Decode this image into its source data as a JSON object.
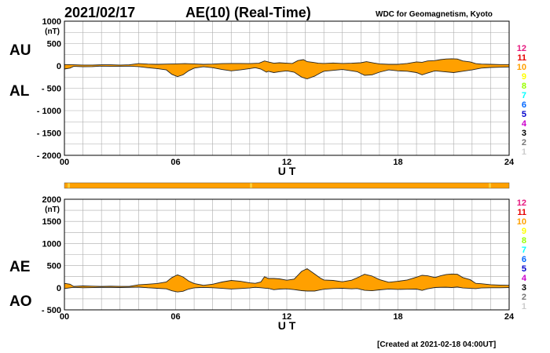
{
  "header": {
    "date": "2021/02/17",
    "title": "AE(10) (Real-Time)",
    "source": "WDC for Geomagnetism, Kyoto"
  },
  "footer": {
    "created": "[Created at 2021-02-18 04:00UT]"
  },
  "colors": {
    "fill": "#ffa000",
    "outline": "#222222",
    "grid": "#aaaaaa",
    "status_bar": "#ffa000",
    "status_bar_light": "#ffcc33"
  },
  "legend": {
    "items": [
      {
        "label": "12",
        "color": "#e6197f"
      },
      {
        "label": "11",
        "color": "#e60000"
      },
      {
        "label": "10",
        "color": "#ffa000"
      },
      {
        "label": "9",
        "color": "#ffff00"
      },
      {
        "label": "8",
        "color": "#99ff00"
      },
      {
        "label": "7",
        "color": "#00ffff"
      },
      {
        "label": "6",
        "color": "#0066ff"
      },
      {
        "label": "5",
        "color": "#0000cc"
      },
      {
        "label": "4",
        "color": "#cc00cc"
      },
      {
        "label": "3",
        "color": "#000000"
      },
      {
        "label": "2",
        "color": "#777777"
      },
      {
        "label": "1",
        "color": "#cccccc"
      }
    ]
  },
  "chart_data": [
    {
      "type": "area",
      "series": [
        {
          "name": "AU"
        },
        {
          "name": "AL"
        }
      ],
      "series_labels": [
        "AU",
        "AL"
      ],
      "yunit": "(nT)",
      "ylim": [
        -2000,
        1000
      ],
      "yticks": [
        "1000",
        "500",
        "0",
        "- 500",
        "- 1000",
        "- 1500",
        "- 2000"
      ],
      "ytick_values": [
        1000,
        500,
        0,
        -500,
        -1000,
        -1500,
        -2000
      ],
      "xlabel": "U T",
      "xlim": [
        0,
        24
      ],
      "xticks": [
        "00",
        "06",
        "12",
        "18",
        "24"
      ],
      "xtick_values": [
        0,
        6,
        12,
        18,
        24
      ],
      "grid": true,
      "upper": [
        [
          0,
          30
        ],
        [
          0.5,
          25
        ],
        [
          1,
          20
        ],
        [
          1.5,
          20
        ],
        [
          2,
          25
        ],
        [
          2.5,
          25
        ],
        [
          3,
          20
        ],
        [
          3.5,
          25
        ],
        [
          4,
          50
        ],
        [
          4.5,
          40
        ],
        [
          5,
          35
        ],
        [
          5.5,
          40
        ],
        [
          6,
          45
        ],
        [
          6.5,
          50
        ],
        [
          7,
          45
        ],
        [
          7.5,
          35
        ],
        [
          8,
          40
        ],
        [
          8.5,
          50
        ],
        [
          9,
          55
        ],
        [
          9.5,
          55
        ],
        [
          10,
          50
        ],
        [
          10.5,
          60
        ],
        [
          10.8,
          110
        ],
        [
          11,
          90
        ],
        [
          11.3,
          60
        ],
        [
          11.6,
          70
        ],
        [
          12,
          60
        ],
        [
          12.3,
          55
        ],
        [
          12.6,
          120
        ],
        [
          12.9,
          140
        ],
        [
          13.1,
          95
        ],
        [
          13.4,
          80
        ],
        [
          13.7,
          60
        ],
        [
          14,
          55
        ],
        [
          14.5,
          65
        ],
        [
          15,
          55
        ],
        [
          15.5,
          60
        ],
        [
          16,
          70
        ],
        [
          16.3,
          95
        ],
        [
          16.7,
          65
        ],
        [
          17,
          45
        ],
        [
          17.5,
          35
        ],
        [
          18,
          35
        ],
        [
          18.5,
          55
        ],
        [
          19,
          90
        ],
        [
          19.3,
          80
        ],
        [
          19.6,
          110
        ],
        [
          20,
          120
        ],
        [
          20.3,
          140
        ],
        [
          20.6,
          155
        ],
        [
          20.9,
          160
        ],
        [
          21.2,
          155
        ],
        [
          21.5,
          110
        ],
        [
          21.9,
          90
        ],
        [
          22.2,
          50
        ],
        [
          22.5,
          40
        ],
        [
          23,
          35
        ],
        [
          23.5,
          30
        ],
        [
          24,
          30
        ]
      ],
      "lower": [
        [
          0,
          -70
        ],
        [
          0.3,
          -50
        ],
        [
          0.5,
          -10
        ],
        [
          1,
          -20
        ],
        [
          1.5,
          -15
        ],
        [
          2,
          -5
        ],
        [
          2.5,
          -10
        ],
        [
          3,
          -10
        ],
        [
          3.5,
          -5
        ],
        [
          4,
          -15
        ],
        [
          4.5,
          -40
        ],
        [
          5,
          -60
        ],
        [
          5.5,
          -90
        ],
        [
          5.8,
          -190
        ],
        [
          6.1,
          -240
        ],
        [
          6.4,
          -200
        ],
        [
          6.7,
          -110
        ],
        [
          7,
          -50
        ],
        [
          7.5,
          -20
        ],
        [
          8,
          -40
        ],
        [
          8.5,
          -80
        ],
        [
          9,
          -110
        ],
        [
          9.5,
          -90
        ],
        [
          10,
          -60
        ],
        [
          10.3,
          -40
        ],
        [
          10.6,
          -70
        ],
        [
          10.9,
          -140
        ],
        [
          11,
          -120
        ],
        [
          11.3,
          -150
        ],
        [
          11.6,
          -130
        ],
        [
          12,
          -110
        ],
        [
          12.4,
          -140
        ],
        [
          12.8,
          -250
        ],
        [
          13.1,
          -290
        ],
        [
          13.5,
          -230
        ],
        [
          13.8,
          -160
        ],
        [
          14,
          -120
        ],
        [
          14.5,
          -100
        ],
        [
          15,
          -80
        ],
        [
          15.5,
          -110
        ],
        [
          15.8,
          -130
        ],
        [
          16.2,
          -210
        ],
        [
          16.6,
          -200
        ],
        [
          17,
          -140
        ],
        [
          17.5,
          -90
        ],
        [
          18,
          -110
        ],
        [
          18.5,
          -120
        ],
        [
          19,
          -150
        ],
        [
          19.3,
          -200
        ],
        [
          19.6,
          -160
        ],
        [
          20,
          -110
        ],
        [
          20.5,
          -130
        ],
        [
          21,
          -150
        ],
        [
          21.5,
          -120
        ],
        [
          22,
          -90
        ],
        [
          22.5,
          -50
        ],
        [
          23,
          -35
        ],
        [
          23.5,
          -30
        ],
        [
          24,
          -25
        ]
      ]
    },
    {
      "type": "area",
      "series": [
        {
          "name": "AE"
        },
        {
          "name": "AO"
        }
      ],
      "series_labels": [
        "AE",
        "AO"
      ],
      "yunit": "(nT)",
      "ylim": [
        -500,
        2000
      ],
      "yticks": [
        "2000",
        "1500",
        "1000",
        "500",
        "0",
        "- 500"
      ],
      "ytick_values": [
        2000,
        1500,
        1000,
        500,
        0,
        -500
      ],
      "xlabel": "U T",
      "xlim": [
        0,
        24
      ],
      "xticks": [
        "00",
        "06",
        "12",
        "18",
        "24"
      ],
      "xtick_values": [
        0,
        6,
        12,
        18,
        24
      ],
      "grid": true,
      "upper": [
        [
          0,
          100
        ],
        [
          0.3,
          80
        ],
        [
          0.5,
          30
        ],
        [
          1,
          40
        ],
        [
          1.5,
          35
        ],
        [
          2,
          30
        ],
        [
          2.5,
          35
        ],
        [
          3,
          30
        ],
        [
          3.5,
          30
        ],
        [
          4,
          65
        ],
        [
          4.5,
          80
        ],
        [
          5,
          95
        ],
        [
          5.5,
          130
        ],
        [
          5.8,
          230
        ],
        [
          6.1,
          290
        ],
        [
          6.4,
          245
        ],
        [
          6.7,
          155
        ],
        [
          7,
          95
        ],
        [
          7.5,
          55
        ],
        [
          8,
          80
        ],
        [
          8.5,
          130
        ],
        [
          9,
          165
        ],
        [
          9.5,
          145
        ],
        [
          10,
          110
        ],
        [
          10.3,
          100
        ],
        [
          10.6,
          130
        ],
        [
          10.8,
          250
        ],
        [
          11,
          210
        ],
        [
          11.3,
          210
        ],
        [
          11.6,
          200
        ],
        [
          12,
          170
        ],
        [
          12.4,
          195
        ],
        [
          12.8,
          370
        ],
        [
          13.1,
          430
        ],
        [
          13.5,
          310
        ],
        [
          13.8,
          220
        ],
        [
          14,
          175
        ],
        [
          14.5,
          165
        ],
        [
          15,
          135
        ],
        [
          15.5,
          170
        ],
        [
          15.8,
          225
        ],
        [
          16.2,
          305
        ],
        [
          16.6,
          265
        ],
        [
          17,
          185
        ],
        [
          17.5,
          125
        ],
        [
          18,
          145
        ],
        [
          18.5,
          175
        ],
        [
          19,
          240
        ],
        [
          19.3,
          280
        ],
        [
          19.6,
          270
        ],
        [
          20,
          230
        ],
        [
          20.3,
          270
        ],
        [
          20.6,
          300
        ],
        [
          20.9,
          310
        ],
        [
          21.2,
          305
        ],
        [
          21.5,
          230
        ],
        [
          21.9,
          180
        ],
        [
          22.2,
          100
        ],
        [
          22.5,
          90
        ],
        [
          23,
          70
        ],
        [
          23.5,
          60
        ],
        [
          24,
          55
        ]
      ],
      "lower": [
        [
          0,
          -20
        ],
        [
          0.5,
          10
        ],
        [
          1,
          0
        ],
        [
          1.5,
          3
        ],
        [
          2,
          10
        ],
        [
          2.5,
          8
        ],
        [
          3,
          5
        ],
        [
          3.5,
          10
        ],
        [
          4,
          18
        ],
        [
          4.5,
          0
        ],
        [
          5,
          -12
        ],
        [
          5.5,
          -25
        ],
        [
          5.8,
          -70
        ],
        [
          6.1,
          -95
        ],
        [
          6.4,
          -80
        ],
        [
          6.7,
          -30
        ],
        [
          7,
          -2
        ],
        [
          7.5,
          8
        ],
        [
          8,
          0
        ],
        [
          8.5,
          -15
        ],
        [
          9,
          -28
        ],
        [
          9.5,
          -18
        ],
        [
          10,
          -5
        ],
        [
          10.3,
          10
        ],
        [
          10.6,
          0
        ],
        [
          10.9,
          -15
        ],
        [
          11,
          -15
        ],
        [
          11.3,
          -45
        ],
        [
          11.6,
          -30
        ],
        [
          12,
          -25
        ],
        [
          12.4,
          -42
        ],
        [
          12.8,
          -65
        ],
        [
          13.1,
          -75
        ],
        [
          13.5,
          -75
        ],
        [
          13.8,
          -50
        ],
        [
          14,
          -33
        ],
        [
          14.5,
          -18
        ],
        [
          15,
          -13
        ],
        [
          15.5,
          -25
        ],
        [
          15.8,
          -18
        ],
        [
          16.2,
          -58
        ],
        [
          16.6,
          -68
        ],
        [
          17,
          -48
        ],
        [
          17.5,
          -28
        ],
        [
          18,
          -38
        ],
        [
          18.5,
          -33
        ],
        [
          19,
          -30
        ],
        [
          19.3,
          -60
        ],
        [
          19.6,
          -25
        ],
        [
          20,
          5
        ],
        [
          20.3,
          10
        ],
        [
          20.6,
          12
        ],
        [
          20.9,
          5
        ],
        [
          21.2,
          18
        ],
        [
          21.5,
          -5
        ],
        [
          21.9,
          -15
        ],
        [
          22.2,
          -20
        ],
        [
          22.5,
          -5
        ],
        [
          23,
          0
        ],
        [
          23.5,
          0
        ],
        [
          24,
          3
        ]
      ]
    }
  ]
}
